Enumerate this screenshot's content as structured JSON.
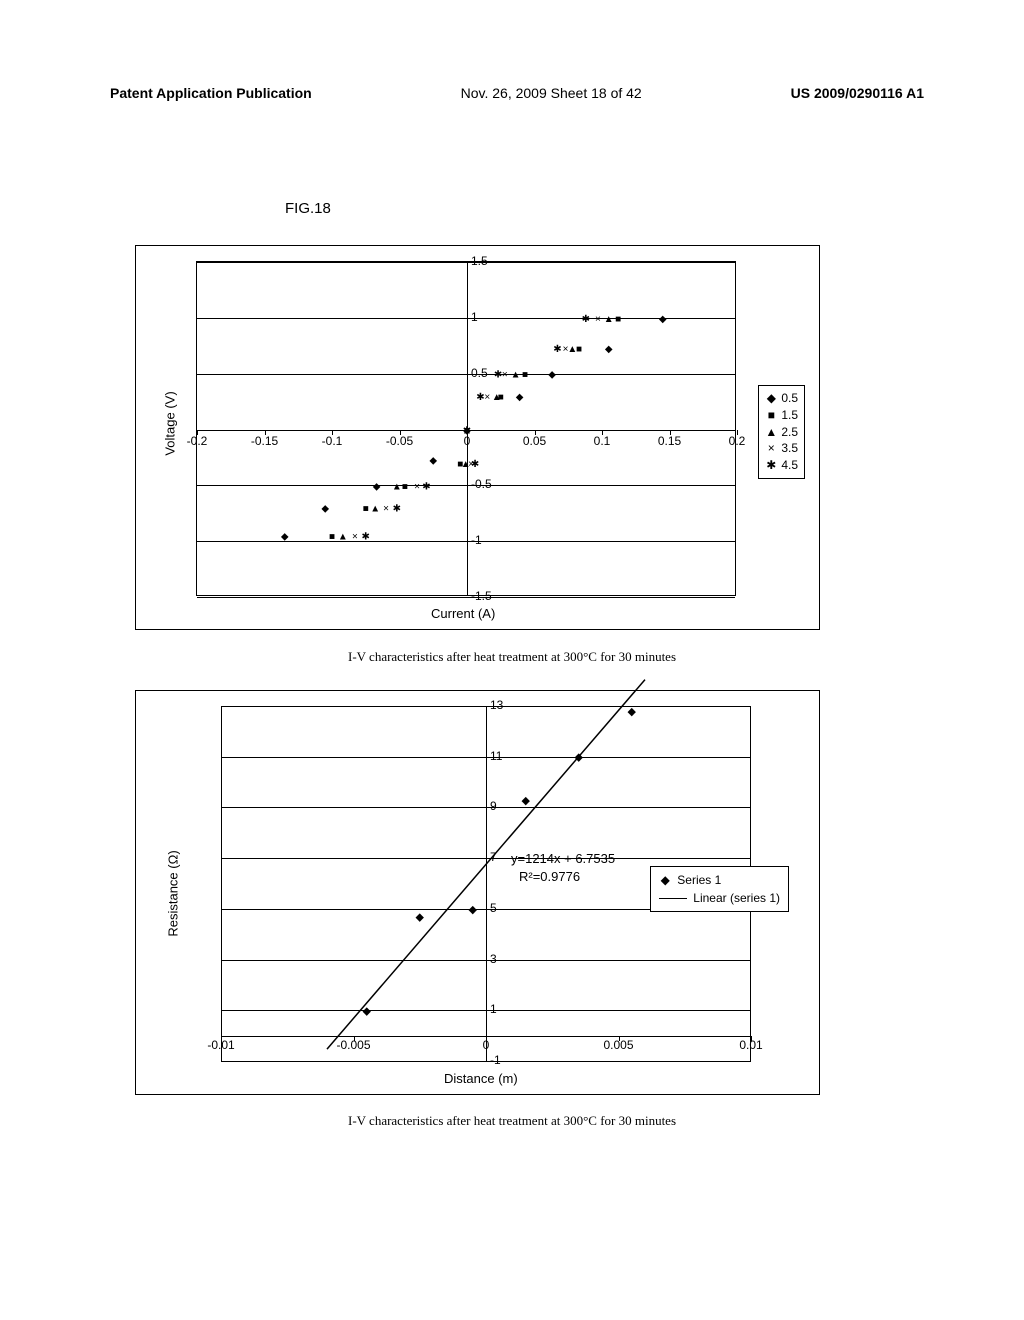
{
  "header": {
    "left": "Patent Application Publication",
    "center": "Nov. 26, 2009  Sheet 18 of 42",
    "right": "US 2009/0290116 A1"
  },
  "figure_label": "FIG.18",
  "chart1": {
    "type": "scatter",
    "x_label": "Current (A)",
    "y_label": "Voltage (V)",
    "xlim": [
      -0.2,
      0.2
    ],
    "ylim": [
      -1.5,
      1.5
    ],
    "x_ticks": [
      -0.2,
      -0.15,
      -0.1,
      -0.05,
      0,
      0.05,
      0.1,
      0.15,
      0.2
    ],
    "y_ticks": [
      -1.5,
      -1,
      -0.5,
      0,
      0.5,
      1,
      1.5
    ],
    "x_tick_labels": [
      "-0.2",
      "-0.15",
      "-0.1",
      "-0.05",
      "0",
      "0.05",
      "0.1",
      "0.15",
      "0.2"
    ],
    "y_tick_labels": [
      "-1.5",
      "-1",
      "-0.5",
      "",
      "0.5",
      "1",
      "1.5"
    ],
    "legend": [
      {
        "marker": "◆",
        "label": "0.5"
      },
      {
        "marker": "■",
        "label": "1.5"
      },
      {
        "marker": "▲",
        "label": "2.5"
      },
      {
        "marker": "×",
        "label": "3.5"
      },
      {
        "marker": "✱",
        "label": "4.5"
      }
    ],
    "series": {
      "s05": {
        "marker": "◆",
        "points": [
          [
            -0.135,
            -0.95
          ],
          [
            -0.105,
            -0.7
          ],
          [
            -0.067,
            -0.5
          ],
          [
            -0.025,
            -0.27
          ],
          [
            0.0,
            0.0
          ],
          [
            0.039,
            0.3
          ],
          [
            0.063,
            0.5
          ],
          [
            0.105,
            0.73
          ],
          [
            0.145,
            1.0
          ]
        ]
      },
      "s15": {
        "marker": "■",
        "points": [
          [
            -0.1,
            -0.95
          ],
          [
            -0.075,
            -0.7
          ],
          [
            -0.046,
            -0.5
          ],
          [
            -0.005,
            -0.3
          ],
          [
            0.0,
            0.0
          ],
          [
            0.025,
            0.3
          ],
          [
            0.043,
            0.5
          ],
          [
            0.083,
            0.73
          ],
          [
            0.112,
            1.0
          ]
        ]
      },
      "s25": {
        "marker": "▲",
        "points": [
          [
            -0.092,
            -0.95
          ],
          [
            -0.068,
            -0.7
          ],
          [
            -0.052,
            -0.5
          ],
          [
            -0.001,
            -0.3
          ],
          [
            0.0,
            0.0
          ],
          [
            0.022,
            0.3
          ],
          [
            0.036,
            0.5
          ],
          [
            0.078,
            0.73
          ],
          [
            0.105,
            1.0
          ]
        ]
      },
      "s35": {
        "marker": "×",
        "points": [
          [
            -0.083,
            -0.95
          ],
          [
            -0.06,
            -0.7
          ],
          [
            -0.037,
            -0.5
          ],
          [
            0.003,
            -0.3
          ],
          [
            0.0,
            0.0
          ],
          [
            0.015,
            0.3
          ],
          [
            0.028,
            0.5
          ],
          [
            0.073,
            0.73
          ],
          [
            0.097,
            1.0
          ]
        ]
      },
      "s45": {
        "marker": "✱",
        "points": [
          [
            -0.075,
            -0.95
          ],
          [
            -0.052,
            -0.7
          ],
          [
            -0.03,
            -0.5
          ],
          [
            0.006,
            -0.3
          ],
          [
            0.0,
            0.0
          ],
          [
            0.01,
            0.3
          ],
          [
            0.023,
            0.5
          ],
          [
            0.067,
            0.73
          ],
          [
            0.088,
            1.0
          ]
        ]
      }
    },
    "marker_color": "#000000",
    "grid_color": "#000000"
  },
  "caption1": "I-V characteristics after heat treatment at  300°C for 30 minutes",
  "chart2": {
    "type": "scatter-with-fit",
    "x_label": "Distance (m)",
    "y_label": "Resistance (Ω)",
    "xlim": [
      -0.01,
      0.01
    ],
    "ylim": [
      -1,
      13
    ],
    "x_ticks": [
      -0.01,
      -0.005,
      0,
      0.005,
      0.01
    ],
    "y_ticks": [
      -1,
      0,
      1,
      3,
      5,
      7,
      9,
      11,
      13
    ],
    "x_tick_labels": [
      "-0.01",
      "-0.005",
      "0",
      "0.005",
      "0.01"
    ],
    "y_tick_labels": [
      "-1",
      "",
      "1",
      "3",
      "5",
      "7",
      "9",
      "11",
      "13"
    ],
    "equation": "y=1214x + 6.7535",
    "rsquared": "R²=0.9776",
    "legend": [
      {
        "marker": "◆",
        "label": "Series 1"
      },
      {
        "marker": "line",
        "label": "Linear (series 1)"
      }
    ],
    "data_points": [
      [
        -0.0045,
        1.0
      ],
      [
        -0.0025,
        4.7
      ],
      [
        -0.0005,
        5.0
      ],
      [
        0.0015,
        9.3
      ],
      [
        0.0035,
        11.0
      ],
      [
        0.0055,
        12.8
      ]
    ],
    "fit_line": {
      "x1": -0.006,
      "y1": -0.53,
      "x2": 0.006,
      "y2": 14.04
    },
    "marker_color": "#000000"
  },
  "caption2": "I-V characteristics after heat treatment at  300°C for 30 minutes"
}
